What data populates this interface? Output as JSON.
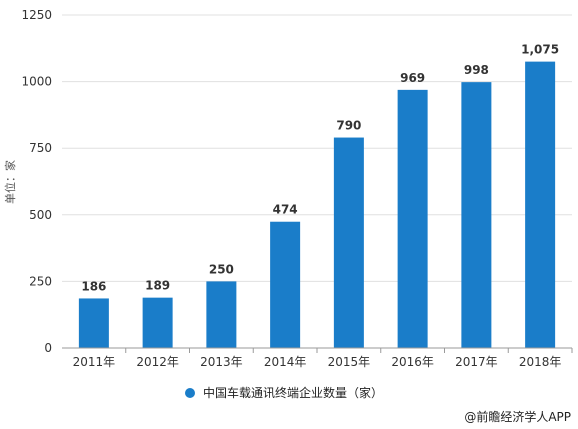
{
  "chart_data": {
    "type": "bar",
    "categories": [
      "2011年",
      "2012年",
      "2013年",
      "2014年",
      "2015年",
      "2016年",
      "2017年",
      "2018年"
    ],
    "series": [
      {
        "name": "中国车载通讯终端企业数量（家）",
        "values": [
          186,
          189,
          250,
          474,
          790,
          969,
          998,
          1075
        ]
      }
    ],
    "data_labels": [
      "186",
      "189",
      "250",
      "474",
      "790",
      "969",
      "998",
      "1,075"
    ],
    "ylabel": "单位：家",
    "ylim": [
      0,
      1250
    ],
    "yticks": [
      0,
      250,
      500,
      750,
      1000,
      1250
    ],
    "grid": true,
    "legend_position": "bottom",
    "bar_color": "#1a7dc9"
  },
  "credit": "@前瞻经济学人APP"
}
